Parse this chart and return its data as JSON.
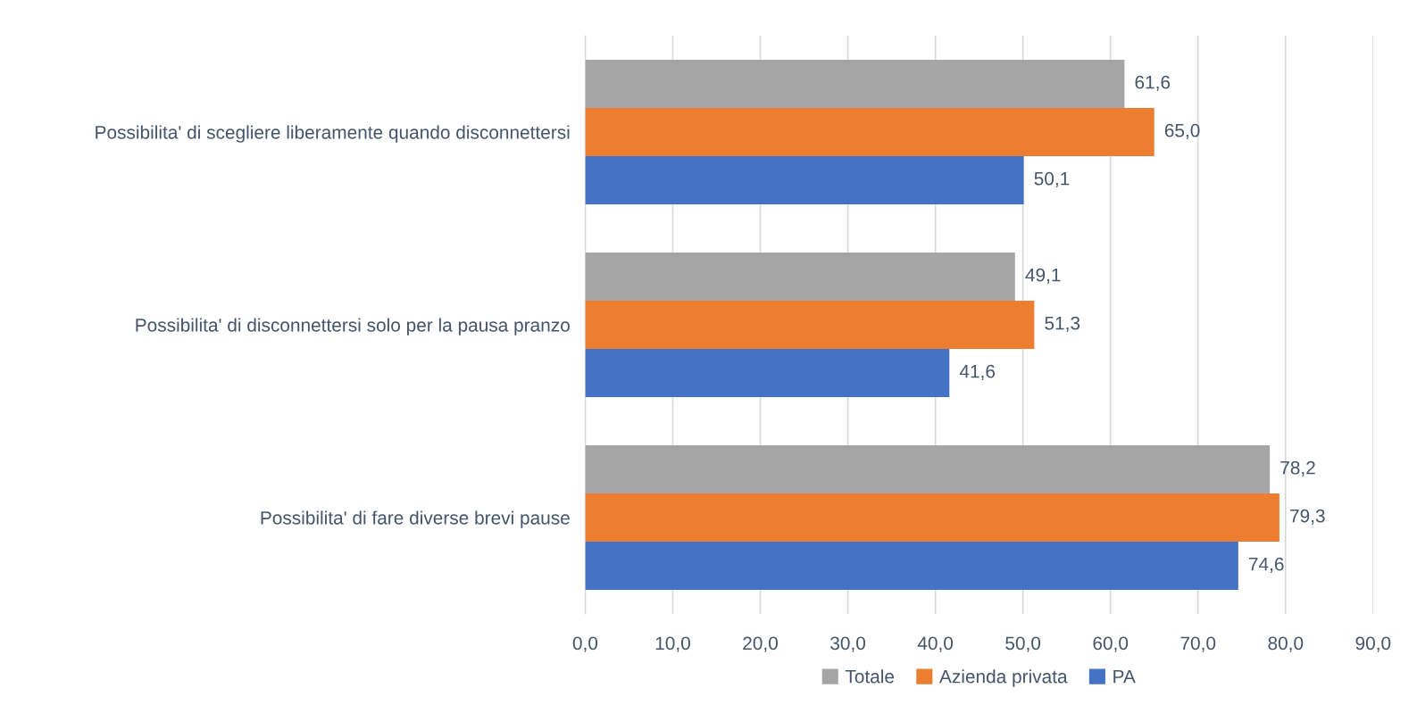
{
  "chart_data": {
    "type": "bar",
    "orientation": "horizontal",
    "categories": [
      "Possibilita' di scegliere liberamente quando disconnettersi",
      "Possibilita' di disconnettersi solo per la pausa pranzo",
      "Possibilita' di fare diverse brevi pause"
    ],
    "series": [
      {
        "name": "Totale",
        "color": "#a5a5a5",
        "values": [
          61.6,
          49.1,
          78.2
        ],
        "value_labels": [
          "61,6",
          "49,1",
          "78,2"
        ]
      },
      {
        "name": "Azienda privata",
        "color": "#ed7d31",
        "values": [
          65.0,
          51.3,
          79.3
        ],
        "value_labels": [
          "65,0",
          "51,3",
          "79,3"
        ]
      },
      {
        "name": "PA",
        "color": "#4472c4",
        "values": [
          50.1,
          41.6,
          74.6
        ],
        "value_labels": [
          "50,1",
          "41,6",
          "74,6"
        ]
      }
    ],
    "xlim": [
      0,
      90
    ],
    "xticks": [
      {
        "value": 0,
        "label": "0,0"
      },
      {
        "value": 10,
        "label": "10,0"
      },
      {
        "value": 20,
        "label": "20,0"
      },
      {
        "value": 30,
        "label": "30,0"
      },
      {
        "value": 40,
        "label": "40,0"
      },
      {
        "value": 50,
        "label": "50,0"
      },
      {
        "value": 60,
        "label": "60,0"
      },
      {
        "value": 70,
        "label": "70,0"
      },
      {
        "value": 80,
        "label": "80,0"
      },
      {
        "value": 90,
        "label": "90,0"
      }
    ],
    "grid": "x",
    "legend": "bottom"
  }
}
